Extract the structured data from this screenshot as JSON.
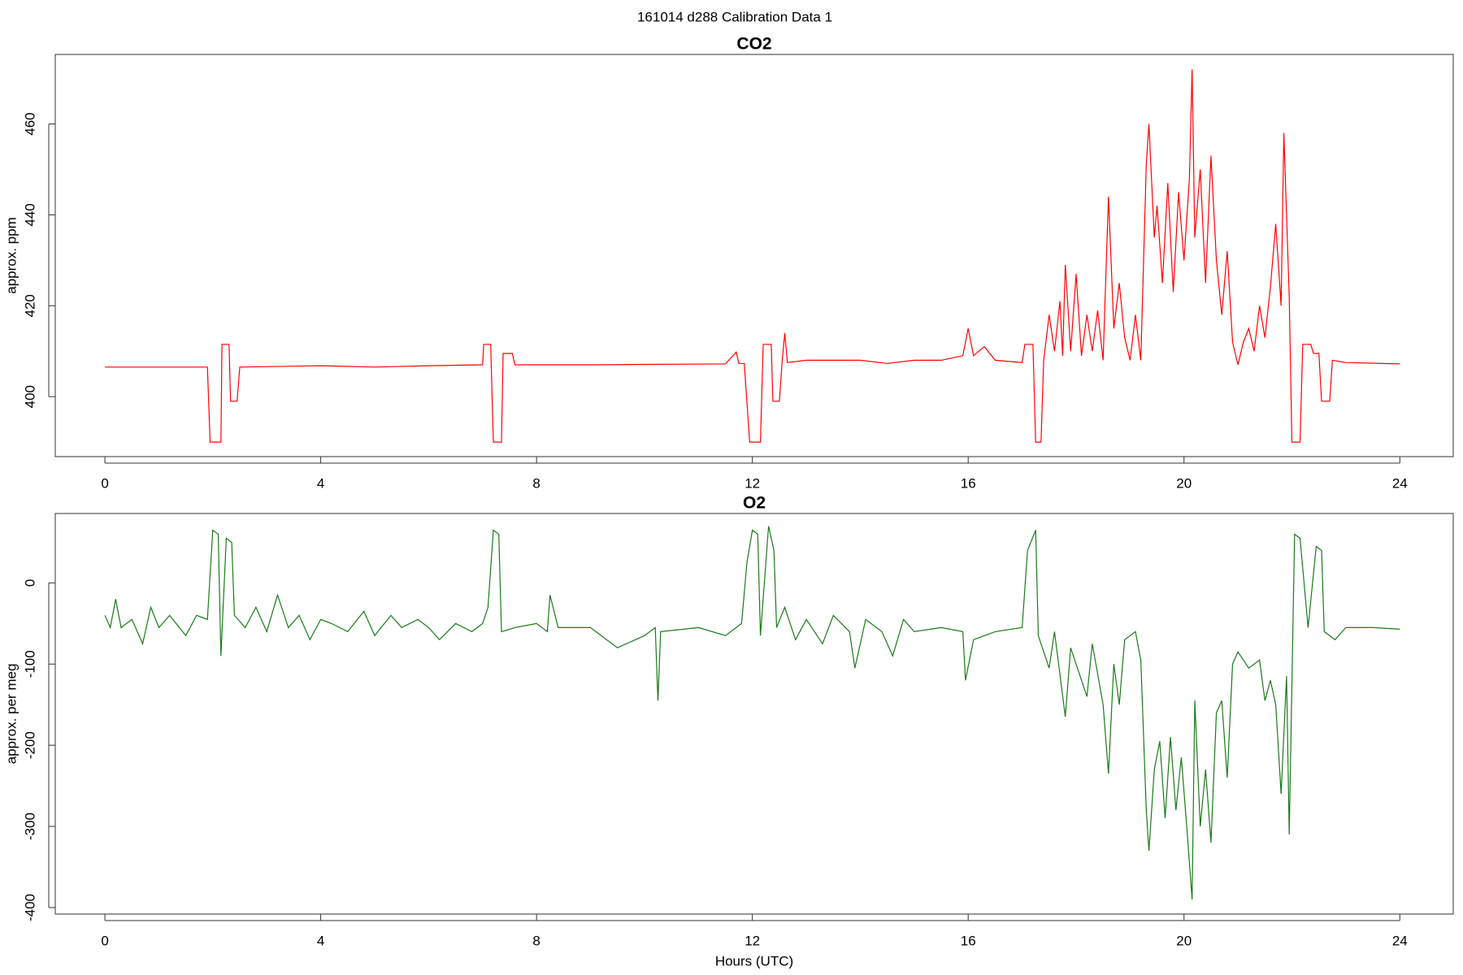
{
  "title": "161014   d288   Calibration Data 1",
  "chart_data": [
    {
      "type": "line",
      "title": "CO2",
      "ylabel": "approx. ppm",
      "color": "#ff0000",
      "xlim": [
        -0.92,
        24.99
      ],
      "xticks": [
        0,
        4,
        8,
        12,
        16,
        20,
        24
      ],
      "ylim": [
        386.8,
        475.3
      ],
      "yticks": [
        400,
        420,
        440,
        460
      ],
      "x": [
        0,
        1.9,
        1.95,
        2.15,
        2.17,
        2.3,
        2.33,
        2.45,
        2.5,
        4,
        5,
        6,
        7.0,
        7.02,
        7.15,
        7.2,
        7.35,
        7.38,
        7.55,
        7.6,
        9,
        10,
        11.5,
        11.7,
        11.75,
        11.85,
        11.95,
        12.15,
        12.2,
        12.35,
        12.38,
        12.5,
        12.55,
        12.6,
        12.65,
        13,
        14,
        14.5,
        15,
        15.5,
        15.9,
        16,
        16.1,
        16.3,
        16.5,
        17,
        17.05,
        17.2,
        17.25,
        17.35,
        17.4,
        17.5,
        17.6,
        17.7,
        17.75,
        17.8,
        17.9,
        18.0,
        18.1,
        18.2,
        18.3,
        18.4,
        18.5,
        18.6,
        18.7,
        18.8,
        18.9,
        19.0,
        19.1,
        19.2,
        19.3,
        19.35,
        19.45,
        19.5,
        19.6,
        19.7,
        19.8,
        19.9,
        20.0,
        20.1,
        20.15,
        20.2,
        20.3,
        20.4,
        20.5,
        20.6,
        20.7,
        20.8,
        20.9,
        21.0,
        21.1,
        21.2,
        21.3,
        21.4,
        21.5,
        21.6,
        21.7,
        21.8,
        21.85,
        21.95,
        22.0,
        22.15,
        22.2,
        22.35,
        22.4,
        22.5,
        22.55,
        22.7,
        22.75,
        23,
        24
      ],
      "values": [
        406.5,
        406.5,
        390,
        390,
        411.5,
        411.5,
        399,
        399,
        406.5,
        406.8,
        406.5,
        406.8,
        407,
        411.5,
        411.5,
        390,
        390,
        409.5,
        409.5,
        407,
        407,
        407.1,
        407.2,
        409.8,
        407.3,
        407.3,
        390,
        390,
        411.5,
        411.5,
        399,
        399,
        407.5,
        414,
        407.5,
        408,
        408,
        407.3,
        408,
        408,
        409,
        415,
        409,
        411,
        408,
        407.5,
        411.5,
        411.5,
        390,
        390,
        408,
        418,
        410,
        421,
        409,
        429,
        410,
        427,
        409,
        418,
        410,
        419,
        408,
        444,
        415,
        425,
        413,
        408,
        418,
        408,
        451,
        460,
        435,
        442,
        425,
        447,
        423,
        445,
        430,
        448,
        472,
        435,
        450,
        425,
        453,
        430,
        418,
        432,
        412,
        407,
        412,
        415,
        410,
        420,
        413,
        424,
        438,
        420,
        458,
        422,
        390,
        390,
        411.5,
        411.5,
        409.5,
        409.5,
        399,
        399,
        408,
        407.5,
        407.2
      ]
    },
    {
      "type": "line",
      "title": "O2",
      "ylabel": "approx. per meg",
      "xlabel": "Hours (UTC)",
      "color": "#1a7a1a",
      "xlim": [
        -0.92,
        24.99
      ],
      "xticks": [
        0,
        4,
        8,
        12,
        16,
        20,
        24
      ],
      "ylim": [
        -408,
        85.5
      ],
      "yticks": [
        0,
        -100,
        -200,
        -300,
        -400
      ],
      "x": [
        0,
        0.1,
        0.2,
        0.3,
        0.5,
        0.7,
        0.85,
        1.0,
        1.2,
        1.5,
        1.7,
        1.9,
        2.0,
        2.1,
        2.15,
        2.25,
        2.35,
        2.4,
        2.6,
        2.8,
        3.0,
        3.2,
        3.4,
        3.6,
        3.8,
        4.0,
        4.2,
        4.5,
        4.8,
        5.0,
        5.3,
        5.5,
        5.8,
        6.0,
        6.2,
        6.5,
        6.8,
        7.0,
        7.1,
        7.2,
        7.3,
        7.35,
        7.6,
        8.0,
        8.2,
        8.25,
        8.4,
        9,
        9.5,
        10,
        10.2,
        10.25,
        10.3,
        11,
        11.5,
        11.8,
        11.9,
        12.0,
        12.1,
        12.15,
        12.3,
        12.4,
        12.45,
        12.6,
        12.8,
        13,
        13.3,
        13.5,
        13.8,
        13.9,
        14.1,
        14.4,
        14.6,
        14.8,
        15,
        15.5,
        15.9,
        15.95,
        16.1,
        16.5,
        17,
        17.1,
        17.25,
        17.3,
        17.5,
        17.6,
        17.8,
        17.9,
        18.2,
        18.3,
        18.5,
        18.6,
        18.7,
        18.8,
        18.9,
        19.1,
        19.2,
        19.3,
        19.35,
        19.45,
        19.55,
        19.65,
        19.75,
        19.85,
        19.95,
        20.05,
        20.15,
        20.2,
        20.3,
        20.4,
        20.5,
        20.6,
        20.7,
        20.8,
        20.9,
        21.0,
        21.2,
        21.4,
        21.5,
        21.6,
        21.7,
        21.8,
        21.9,
        21.95,
        22.05,
        22.15,
        22.3,
        22.45,
        22.55,
        22.6,
        22.8,
        23,
        23.5,
        24
      ],
      "values": [
        -40,
        -55,
        -20,
        -55,
        -45,
        -75,
        -30,
        -55,
        -40,
        -65,
        -40,
        -45,
        65,
        60,
        -90,
        55,
        50,
        -40,
        -55,
        -30,
        -60,
        -15,
        -55,
        -40,
        -70,
        -45,
        -50,
        -60,
        -35,
        -65,
        -40,
        -55,
        -45,
        -55,
        -70,
        -50,
        -60,
        -50,
        -30,
        65,
        60,
        -60,
        -55,
        -50,
        -60,
        -15,
        -55,
        -55,
        -80,
        -65,
        -55,
        -145,
        -60,
        -55,
        -65,
        -50,
        25,
        65,
        60,
        -65,
        70,
        40,
        -55,
        -30,
        -70,
        -45,
        -75,
        -40,
        -60,
        -105,
        -45,
        -60,
        -90,
        -45,
        -60,
        -55,
        -60,
        -120,
        -70,
        -60,
        -55,
        40,
        65,
        -65,
        -105,
        -60,
        -165,
        -80,
        -140,
        -75,
        -150,
        -235,
        -100,
        -150,
        -70,
        -60,
        -95,
        -280,
        -330,
        -230,
        -195,
        -290,
        -190,
        -280,
        -215,
        -300,
        -390,
        -145,
        -300,
        -230,
        -320,
        -160,
        -145,
        -240,
        -100,
        -85,
        -105,
        -95,
        -145,
        -120,
        -150,
        -260,
        -115,
        -310,
        60,
        55,
        -55,
        45,
        40,
        -60,
        -70,
        -55,
        -55,
        -57
      ]
    }
  ]
}
